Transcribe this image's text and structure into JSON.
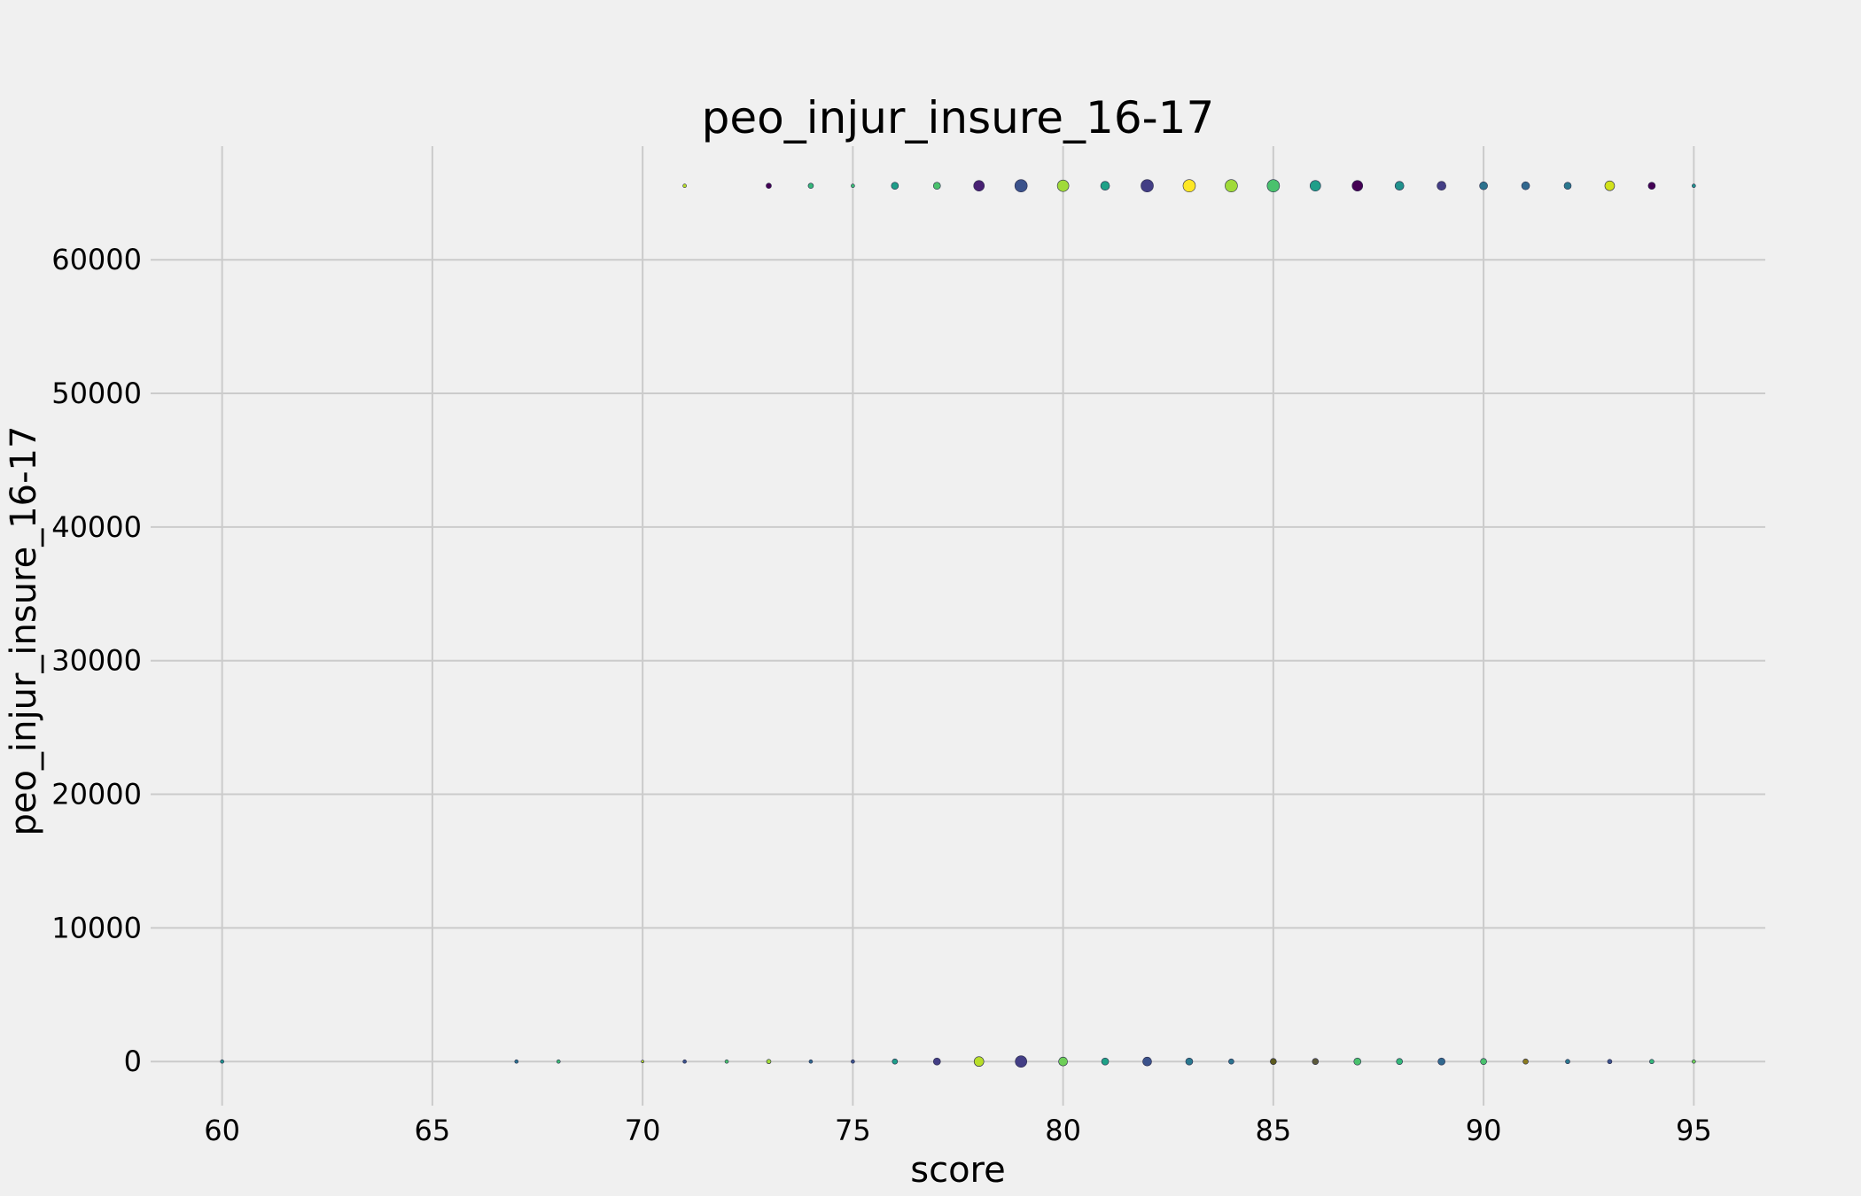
{
  "chart_data": {
    "type": "scatter",
    "title": "peo_injur_insure_16-17",
    "xlabel": "score",
    "ylabel": "peo_injur_insure_16-17",
    "xlim": [
      58.3,
      96.7
    ],
    "ylim": [
      -3300,
      68500
    ],
    "xticks": [
      60,
      65,
      70,
      75,
      80,
      85,
      90,
      95
    ],
    "yticks": [
      0,
      10000,
      20000,
      30000,
      40000,
      50000,
      60000
    ],
    "grid": true,
    "background": "#f0f0f0",
    "series": [
      {
        "points": [
          {
            "x": 71,
            "y": 65535,
            "size": 2,
            "color": "#b8de29"
          },
          {
            "x": 73,
            "y": 65535,
            "size": 3,
            "color": "#440154"
          },
          {
            "x": 74,
            "y": 65535,
            "size": 3,
            "color": "#35b779"
          },
          {
            "x": 75,
            "y": 65535,
            "size": 2,
            "color": "#3cbb75"
          },
          {
            "x": 76,
            "y": 65535,
            "size": 4,
            "color": "#1f9e89"
          },
          {
            "x": 77,
            "y": 65535,
            "size": 4,
            "color": "#4ac16d"
          },
          {
            "x": 78,
            "y": 65535,
            "size": 6,
            "color": "#482173"
          },
          {
            "x": 79,
            "y": 65535,
            "size": 7,
            "color": "#3b528b"
          },
          {
            "x": 80,
            "y": 65535,
            "size": 6.5,
            "color": "#a0da39"
          },
          {
            "x": 81,
            "y": 65535,
            "size": 5,
            "color": "#1fa187"
          },
          {
            "x": 82,
            "y": 65535,
            "size": 7,
            "color": "#433e85"
          },
          {
            "x": 83,
            "y": 65535,
            "size": 7,
            "color": "#fde725"
          },
          {
            "x": 84,
            "y": 65535,
            "size": 7,
            "color": "#a0da39"
          },
          {
            "x": 85,
            "y": 65535,
            "size": 7,
            "color": "#4ac16d"
          },
          {
            "x": 86,
            "y": 65535,
            "size": 6,
            "color": "#1f9e89"
          },
          {
            "x": 87,
            "y": 65535,
            "size": 6,
            "color": "#440154"
          },
          {
            "x": 88,
            "y": 65535,
            "size": 5,
            "color": "#21918c"
          },
          {
            "x": 89,
            "y": 65535,
            "size": 5,
            "color": "#433e85"
          },
          {
            "x": 90,
            "y": 65535,
            "size": 4.5,
            "color": "#2c728e"
          },
          {
            "x": 91,
            "y": 65535,
            "size": 4.5,
            "color": "#31688e"
          },
          {
            "x": 92,
            "y": 65535,
            "size": 4,
            "color": "#2a788e"
          },
          {
            "x": 93,
            "y": 65535,
            "size": 5.5,
            "color": "#d2e21b"
          },
          {
            "x": 94,
            "y": 65535,
            "size": 4,
            "color": "#440154"
          },
          {
            "x": 95,
            "y": 65535,
            "size": 2,
            "color": "#21918c"
          },
          {
            "x": 60,
            "y": 0,
            "size": 2,
            "color": "#21918c"
          },
          {
            "x": 67,
            "y": 0,
            "size": 2,
            "color": "#2c728e"
          },
          {
            "x": 68,
            "y": 0,
            "size": 2,
            "color": "#3cbb75"
          },
          {
            "x": 70,
            "y": 0,
            "size": 1.5,
            "color": "#b8de29"
          },
          {
            "x": 71,
            "y": 0,
            "size": 2,
            "color": "#3b528b"
          },
          {
            "x": 72,
            "y": 0,
            "size": 2,
            "color": "#4ac16d"
          },
          {
            "x": 73,
            "y": 0,
            "size": 2.5,
            "color": "#a0da39"
          },
          {
            "x": 74,
            "y": 0,
            "size": 2,
            "color": "#31688e"
          },
          {
            "x": 75,
            "y": 0,
            "size": 2,
            "color": "#3b528b"
          },
          {
            "x": 76,
            "y": 0,
            "size": 3,
            "color": "#1f9e89"
          },
          {
            "x": 77,
            "y": 0,
            "size": 4,
            "color": "#433e85"
          },
          {
            "x": 78,
            "y": 0,
            "size": 5.5,
            "color": "#b8de29"
          },
          {
            "x": 79,
            "y": 0,
            "size": 6.5,
            "color": "#433e85"
          },
          {
            "x": 80,
            "y": 0,
            "size": 5,
            "color": "#6ece58"
          },
          {
            "x": 81,
            "y": 0,
            "size": 4,
            "color": "#1fa187"
          },
          {
            "x": 82,
            "y": 0,
            "size": 5,
            "color": "#3b528b"
          },
          {
            "x": 83,
            "y": 0,
            "size": 4,
            "color": "#2a788e"
          },
          {
            "x": 84,
            "y": 0,
            "size": 3,
            "color": "#2c728e"
          },
          {
            "x": 85,
            "y": 0,
            "size": 3.5,
            "color": "#5c5a1e"
          },
          {
            "x": 86,
            "y": 0,
            "size": 3.5,
            "color": "#5c5a3a"
          },
          {
            "x": 87,
            "y": 0,
            "size": 4,
            "color": "#4ac16d"
          },
          {
            "x": 88,
            "y": 0,
            "size": 3.5,
            "color": "#35b779"
          },
          {
            "x": 89,
            "y": 0,
            "size": 4,
            "color": "#31688e"
          },
          {
            "x": 90,
            "y": 0,
            "size": 3.5,
            "color": "#4ac16d"
          },
          {
            "x": 91,
            "y": 0,
            "size": 3,
            "color": "#8a7a1e"
          },
          {
            "x": 92,
            "y": 0,
            "size": 2.5,
            "color": "#2a788e"
          },
          {
            "x": 93,
            "y": 0,
            "size": 2.5,
            "color": "#3b528b"
          },
          {
            "x": 94,
            "y": 0,
            "size": 2.5,
            "color": "#35b779"
          },
          {
            "x": 95,
            "y": 0,
            "size": 2,
            "color": "#6ece58"
          }
        ]
      }
    ]
  }
}
